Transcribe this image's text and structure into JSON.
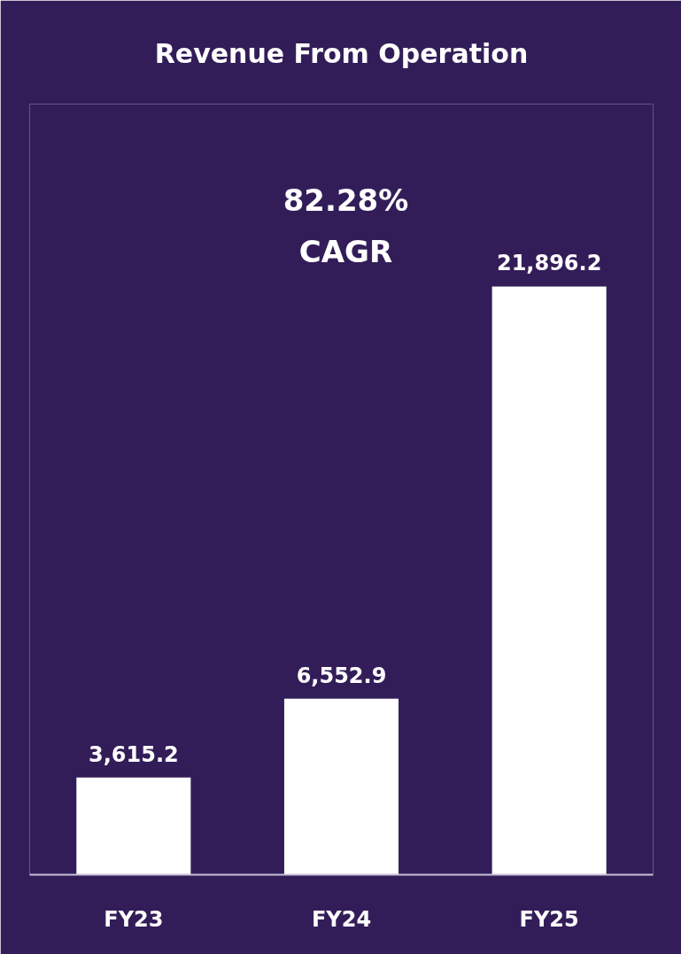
{
  "chart_data": {
    "type": "bar",
    "title": "Revenue From Operation",
    "categories": [
      "FY23",
      "FY24",
      "FY25"
    ],
    "values": [
      3615.2,
      6552.9,
      21896.2
    ],
    "value_labels": [
      "3,615.2",
      "6,552.9",
      "21,896.2"
    ],
    "color": "#ffffff",
    "annotations": [
      "82.28%\nCAGR"
    ],
    "grid": false
  }
}
